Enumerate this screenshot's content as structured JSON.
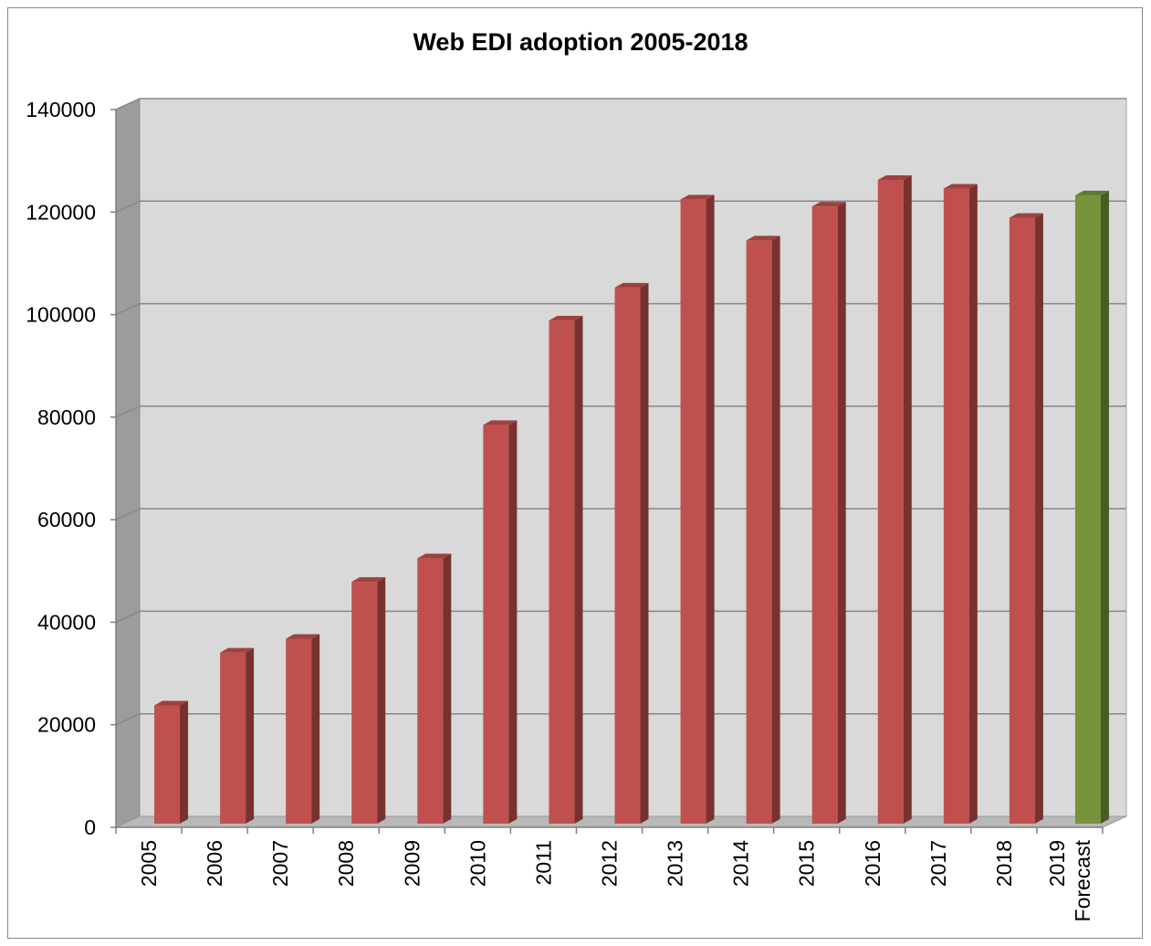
{
  "chart_data": {
    "type": "bar",
    "title": "Web EDI adoption 2005-2018",
    "xlabel": "",
    "ylabel": "",
    "categories": [
      [
        "2005"
      ],
      [
        "2006"
      ],
      [
        "2007"
      ],
      [
        "2008"
      ],
      [
        "2009"
      ],
      [
        "2010"
      ],
      [
        "2011"
      ],
      [
        "2012"
      ],
      [
        "2013"
      ],
      [
        "2014"
      ],
      [
        "2015"
      ],
      [
        "2016"
      ],
      [
        "2017"
      ],
      [
        "2018"
      ],
      [
        "2019",
        "Forecast"
      ]
    ],
    "values": [
      24500,
      34800,
      37500,
      48600,
      53200,
      79200,
      99600,
      106000,
      123200,
      115200,
      121800,
      127000,
      125300,
      119600,
      124000
    ],
    "bar_colors": [
      "#c0504d",
      "#c0504d",
      "#c0504d",
      "#c0504d",
      "#c0504d",
      "#c0504d",
      "#c0504d",
      "#c0504d",
      "#c0504d",
      "#c0504d",
      "#c0504d",
      "#c0504d",
      "#c0504d",
      "#c0504d",
      "#77933c"
    ],
    "ylim": [
      0,
      140000
    ],
    "yticks": [
      "0",
      "20000",
      "40000",
      "60000",
      "80000",
      "100000",
      "120000",
      "140000"
    ],
    "grid": true,
    "legend": "none",
    "style": "3d-column"
  }
}
